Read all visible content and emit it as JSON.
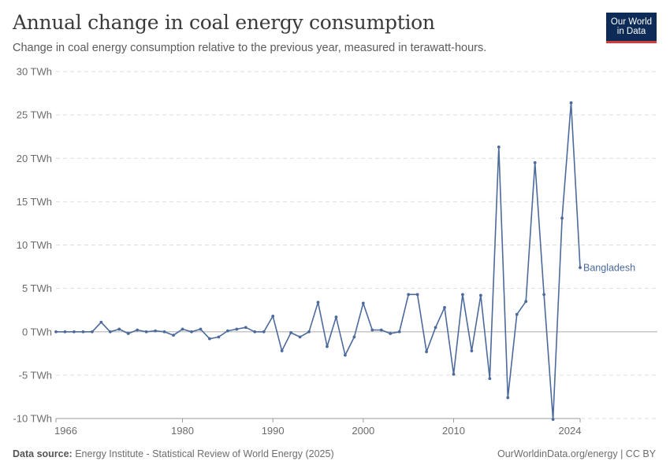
{
  "header": {
    "title": "Annual change in coal energy consumption",
    "subtitle": "Change in coal energy consumption relative to the previous year, measured in terawatt-hours."
  },
  "logo": {
    "line1": "Our World",
    "line2": "in Data"
  },
  "footer": {
    "source_label": "Data source:",
    "source_text": "Energy Institute - Statistical Review of World Energy (2025)",
    "right_text": "OurWorldinData.org/energy | CC BY"
  },
  "colors": {
    "series": "#4c6a9c",
    "grid": "#dddddd",
    "zero": "#bbbbbb",
    "axis_text": "#6b6b6b"
  },
  "chart_data": {
    "type": "line",
    "title": "Annual change in coal energy consumption",
    "ylabel": "",
    "xlabel": "",
    "ylim": [
      -10,
      30
    ],
    "xlim": [
      1966,
      2024
    ],
    "yticks": [
      -10,
      -5,
      0,
      5,
      10,
      15,
      20,
      25,
      30
    ],
    "ytick_labels": [
      "-10 TWh",
      "-5 TWh",
      "0 TWh",
      "5 TWh",
      "10 TWh",
      "15 TWh",
      "20 TWh",
      "25 TWh",
      "30 TWh"
    ],
    "xticks": [
      1966,
      1980,
      1990,
      2000,
      2010,
      2024
    ],
    "grid": true,
    "series": [
      {
        "name": "Bangladesh",
        "x": [
          1966,
          1967,
          1968,
          1969,
          1970,
          1971,
          1972,
          1973,
          1974,
          1975,
          1976,
          1977,
          1978,
          1979,
          1980,
          1981,
          1982,
          1983,
          1984,
          1985,
          1986,
          1987,
          1988,
          1989,
          1990,
          1991,
          1992,
          1993,
          1994,
          1995,
          1996,
          1997,
          1998,
          1999,
          2000,
          2001,
          2002,
          2003,
          2004,
          2005,
          2006,
          2007,
          2008,
          2009,
          2010,
          2011,
          2012,
          2013,
          2014,
          2015,
          2016,
          2017,
          2018,
          2019,
          2020,
          2021,
          2022,
          2023,
          2024
        ],
        "y": [
          0,
          0,
          0,
          0,
          0,
          1.1,
          0,
          0.3,
          -0.2,
          0.2,
          0,
          0.1,
          0,
          -0.4,
          0.3,
          0,
          0.3,
          -0.8,
          -0.6,
          0.1,
          0.3,
          0.5,
          0,
          0,
          1.8,
          -2.2,
          -0.1,
          -0.6,
          0,
          3.4,
          -1.7,
          1.7,
          -2.7,
          -0.6,
          3.3,
          0.2,
          0.2,
          -0.2,
          0,
          4.3,
          4.3,
          -2.3,
          0.5,
          2.8,
          -4.9,
          4.3,
          -2.2,
          4.2,
          -5.4,
          21.3,
          -7.6,
          2,
          3.5,
          19.5,
          4.3,
          -10.1,
          13.1,
          26.4,
          7.4
        ]
      }
    ]
  }
}
